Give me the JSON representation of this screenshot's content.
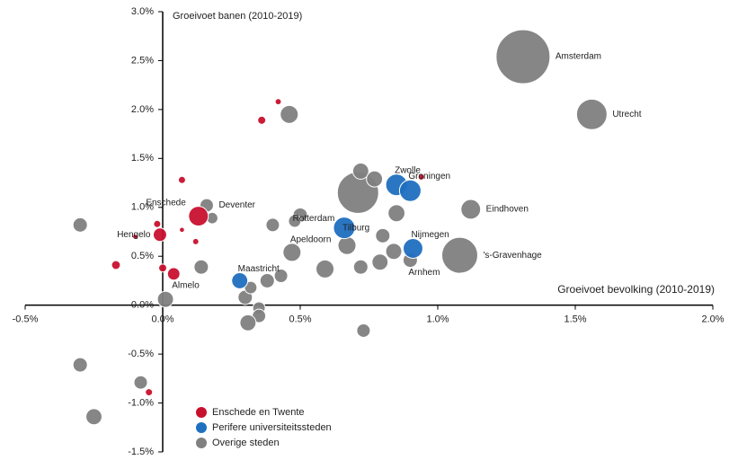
{
  "chart_data": {
    "type": "scatter",
    "ylabel": "Groeivoet banen (2010-2019)",
    "xlabel": "Groeivoet bevolking (2010-2019)",
    "xlim": [
      -0.5,
      2.0
    ],
    "ylim": [
      -1.5,
      3.0
    ],
    "xticks": [
      {
        "value": -0.5,
        "label": "-0.5%"
      },
      {
        "value": 0,
        "label": "0.0%"
      },
      {
        "value": 0.5,
        "label": "0.5%"
      },
      {
        "value": 1.0,
        "label": "1.0%"
      },
      {
        "value": 1.5,
        "label": "1.5%"
      },
      {
        "value": 2.0,
        "label": "2.0%"
      }
    ],
    "yticks": [
      {
        "value": -1.5,
        "label": "-1.5%"
      },
      {
        "value": -1.0,
        "label": "-1.0%"
      },
      {
        "value": -0.5,
        "label": "-0.5%"
      },
      {
        "value": 0,
        "label": "0.0%"
      },
      {
        "value": 0.5,
        "label": "0.5%"
      },
      {
        "value": 1.0,
        "label": "1.0%"
      },
      {
        "value": 1.5,
        "label": "1.5%"
      },
      {
        "value": 2.0,
        "label": "2.0%"
      },
      {
        "value": 2.5,
        "label": "2.5%"
      },
      {
        "value": 3.0,
        "label": "3.0%"
      }
    ],
    "legend": "lower left",
    "series": [
      {
        "name": "Overige steden",
        "color": "#808080",
        "x": [
          1.31,
          1.56,
          0.46,
          0.71,
          0.72,
          0.77,
          1.12,
          1.08,
          0.85,
          0.8,
          0.84,
          0.79,
          0.9,
          0.72,
          0.67,
          0.59,
          0.47,
          0.5,
          0.48,
          0.4,
          0.18,
          0.16,
          0.14,
          -0.3,
          0.01,
          0.3,
          0.32,
          0.38,
          0.43,
          0.35,
          0.35,
          0.31,
          0.73,
          -0.3,
          -0.08,
          -0.25
        ],
        "values": [
          2.54,
          1.95,
          1.95,
          1.15,
          1.37,
          1.29,
          0.98,
          0.51,
          0.94,
          0.71,
          0.55,
          0.44,
          0.46,
          0.39,
          0.61,
          0.37,
          0.54,
          0.92,
          0.86,
          0.82,
          0.89,
          1.02,
          0.39,
          0.82,
          0.06,
          0.08,
          0.18,
          0.25,
          0.3,
          -0.03,
          -0.11,
          -0.18,
          -0.26,
          -0.61,
          -0.79,
          -1.14
        ],
        "sizes": [
          225,
          72,
          25,
          132,
          20,
          20,
          30,
          100,
          22,
          16,
          20,
          20,
          16,
          16,
          25,
          25,
          25,
          16,
          12,
          14,
          10,
          14,
          16,
          16,
          20,
          16,
          12,
          16,
          14,
          12,
          14,
          20,
          14,
          16,
          14,
          20
        ],
        "labels": [
          "Amsterdam",
          "Utrecht",
          null,
          "Rotterdam",
          null,
          null,
          "Eindhoven",
          "'s-Gravenhage",
          null,
          null,
          null,
          null,
          "Arnhem",
          null,
          null,
          null,
          "Apeldoorn",
          null,
          null,
          null,
          null,
          "Deventer",
          null,
          null,
          null,
          null,
          null,
          null,
          null,
          null,
          null,
          null,
          null,
          null,
          null,
          null
        ]
      },
      {
        "name": "Perifere universiteitssteden",
        "color": "#1f6fc0",
        "x": [
          0.85,
          0.9,
          0.66,
          0.91,
          0.28
        ],
        "values": [
          1.23,
          1.17,
          0.79,
          0.58,
          0.25
        ],
        "sizes": [
          36,
          36,
          36,
          30,
          20
        ],
        "labels": [
          "Zwolle",
          "Groningen",
          "Tilburg",
          "Nijmegen",
          "Maastricht"
        ]
      },
      {
        "name": "Enschede en Twente",
        "color": "#c8102e",
        "x": [
          0.42,
          0.36,
          0.07,
          -0.02,
          -0.01,
          -0.1,
          0.07,
          0.12,
          0.13,
          -0.17,
          0.0,
          0.04,
          -0.05,
          0.94
        ],
        "values": [
          2.08,
          1.89,
          1.28,
          0.83,
          0.72,
          0.7,
          0.77,
          0.65,
          0.91,
          0.41,
          0.38,
          0.32,
          -0.89,
          1.31
        ],
        "sizes": [
          3,
          5,
          4,
          4,
          14,
          2,
          2,
          3,
          30,
          6,
          5,
          12,
          4,
          3
        ],
        "labels": [
          null,
          null,
          null,
          null,
          "Hengelo",
          null,
          null,
          null,
          "Enschede",
          null,
          null,
          "Almelo",
          null,
          null
        ]
      }
    ]
  }
}
